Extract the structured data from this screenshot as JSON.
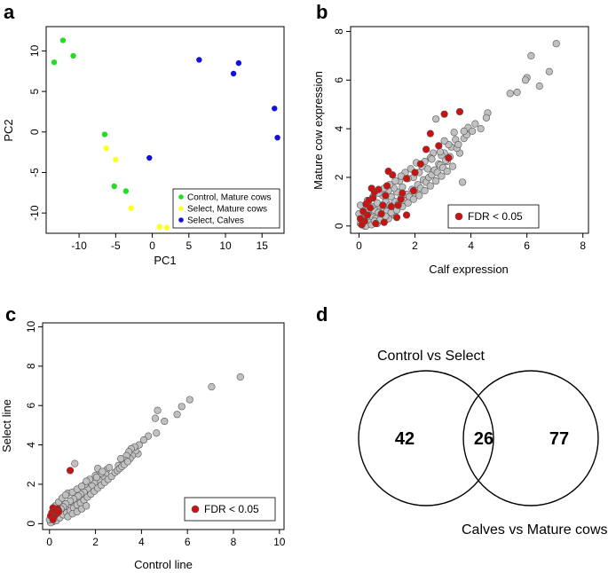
{
  "chart_data": [
    {
      "panel": "a",
      "type": "scatter",
      "xlabel": "PC1",
      "ylabel": "PC2",
      "xlim": [
        -14.5,
        18
      ],
      "ylim": [
        -12.5,
        13
      ],
      "xticks": [
        -10,
        -5,
        0,
        5,
        10,
        15
      ],
      "yticks": [
        -10,
        -5,
        0,
        5,
        10
      ],
      "legend_position": "bottom-right",
      "series": [
        {
          "name": "Control, Mature cows",
          "color": "#22dd22",
          "x": [
            -12.2,
            -10.8,
            -13.4,
            -6.5,
            -5.2,
            -3.6
          ],
          "y": [
            11.3,
            9.4,
            8.6,
            -0.3,
            -6.7,
            -7.3
          ]
        },
        {
          "name": "Select, Mature cows",
          "color": "#ffff22",
          "x": [
            -6.3,
            -5.0,
            -2.9,
            1.0,
            2.0
          ],
          "y": [
            -2.0,
            -3.4,
            -9.4,
            -11.7,
            -11.8
          ]
        },
        {
          "name": "Select, Calves",
          "color": "#1111dd",
          "x": [
            -0.4,
            6.4,
            11.1,
            11.8,
            16.7,
            17.1
          ],
          "y": [
            -3.2,
            8.9,
            7.2,
            8.5,
            2.9,
            -0.7
          ]
        }
      ]
    },
    {
      "panel": "b",
      "type": "scatter",
      "xlabel": "Calf expression",
      "ylabel": "Mature cow expression",
      "xlim": [
        -0.3,
        8.2
      ],
      "ylim": [
        -0.3,
        8.2
      ],
      "xticks": [
        0,
        2,
        4,
        6,
        8
      ],
      "yticks": [
        0,
        2,
        4,
        6,
        8
      ],
      "legend_position": "bottom-right",
      "legend_label": "FDR < 0.05",
      "grey_points": [
        [
          7.05,
          7.5
        ],
        [
          6.15,
          7.0
        ],
        [
          6.45,
          5.75
        ],
        [
          6.8,
          6.35
        ],
        [
          6.0,
          6.1
        ],
        [
          5.95,
          6.0
        ],
        [
          5.65,
          5.5
        ],
        [
          5.4,
          5.45
        ],
        [
          4.6,
          4.65
        ],
        [
          4.55,
          4.45
        ],
        [
          4.35,
          4.0
        ],
        [
          4.15,
          4.2
        ],
        [
          3.9,
          4.05
        ],
        [
          3.75,
          3.6
        ],
        [
          3.6,
          3.0
        ],
        [
          3.45,
          3.55
        ],
        [
          3.4,
          3.85
        ],
        [
          3.3,
          3.25
        ],
        [
          3.2,
          3.35
        ],
        [
          3.15,
          2.65
        ],
        [
          3.05,
          3.0
        ],
        [
          2.95,
          2.9
        ],
        [
          2.85,
          2.55
        ],
        [
          2.75,
          4.4
        ],
        [
          2.65,
          3.0
        ],
        [
          2.55,
          2.8
        ],
        [
          2.45,
          2.35
        ],
        [
          2.35,
          2.65
        ],
        [
          2.25,
          2.45
        ],
        [
          2.15,
          2.2
        ],
        [
          2.05,
          2.6
        ],
        [
          1.95,
          2.0
        ],
        [
          1.85,
          2.35
        ],
        [
          1.75,
          1.95
        ],
        [
          1.65,
          2.2
        ],
        [
          1.55,
          1.6
        ],
        [
          1.45,
          1.85
        ],
        [
          1.35,
          1.4
        ],
        [
          1.25,
          1.55
        ],
        [
          1.15,
          1.2
        ],
        [
          1.05,
          1.45
        ],
        [
          0.95,
          1.0
        ],
        [
          0.85,
          1.25
        ],
        [
          0.75,
          0.85
        ],
        [
          0.65,
          0.95
        ],
        [
          0.55,
          0.65
        ],
        [
          0.45,
          0.8
        ],
        [
          0.35,
          0.45
        ],
        [
          0.25,
          0.55
        ],
        [
          0.15,
          0.2
        ],
        [
          0.08,
          0.35
        ],
        [
          0.05,
          0.1
        ],
        [
          0.1,
          0.05
        ],
        [
          0.2,
          0.0
        ],
        [
          0.3,
          0.25
        ],
        [
          0.4,
          0.15
        ],
        [
          0.5,
          0.35
        ],
        [
          0.6,
          0.3
        ],
        [
          0.7,
          0.55
        ],
        [
          0.8,
          0.45
        ],
        [
          0.9,
          0.7
        ],
        [
          1.0,
          0.6
        ],
        [
          1.1,
          0.85
        ],
        [
          1.2,
          0.75
        ],
        [
          1.3,
          1.0
        ],
        [
          1.4,
          0.9
        ],
        [
          1.5,
          1.15
        ],
        [
          1.6,
          1.05
        ],
        [
          1.7,
          1.3
        ],
        [
          1.8,
          1.2
        ],
        [
          1.9,
          1.5
        ],
        [
          2.0,
          1.35
        ],
        [
          2.1,
          1.7
        ],
        [
          2.2,
          1.55
        ],
        [
          2.3,
          1.9
        ],
        [
          2.4,
          1.8
        ],
        [
          2.5,
          2.0
        ],
        [
          2.6,
          2.1
        ],
        [
          2.7,
          2.3
        ],
        [
          2.8,
          2.2
        ],
        [
          2.9,
          2.5
        ],
        [
          3.0,
          2.4
        ],
        [
          3.1,
          2.7
        ],
        [
          3.25,
          2.85
        ],
        [
          3.5,
          3.2
        ],
        [
          3.7,
          1.8
        ],
        [
          3.85,
          3.75
        ],
        [
          4.05,
          3.9
        ],
        [
          0.25,
          0.0
        ],
        [
          0.45,
          0.05
        ],
        [
          0.65,
          0.1
        ],
        [
          0.85,
          0.2
        ],
        [
          1.05,
          0.3
        ],
        [
          1.25,
          0.45
        ],
        [
          0.15,
          0.75
        ],
        [
          0.3,
          1.05
        ],
        [
          0.5,
          1.2
        ],
        [
          0.7,
          1.35
        ],
        [
          0.9,
          1.55
        ],
        [
          1.1,
          1.7
        ],
        [
          1.3,
          1.85
        ],
        [
          1.5,
          2.05
        ],
        [
          0.0,
          0.5
        ],
        [
          0.05,
          0.85
        ],
        [
          0.1,
          0.3
        ],
        [
          0.35,
          0.7
        ],
        [
          0.55,
          0.2
        ],
        [
          0.75,
          0.25
        ],
        [
          0.95,
          0.4
        ],
        [
          1.15,
          0.55
        ],
        [
          1.35,
          0.65
        ],
        [
          1.55,
          0.8
        ],
        [
          1.75,
          0.95
        ],
        [
          1.95,
          1.1
        ],
        [
          2.15,
          1.25
        ],
        [
          2.35,
          1.45
        ],
        [
          2.55,
          1.65
        ],
        [
          2.75,
          1.85
        ],
        [
          2.95,
          2.05
        ],
        [
          3.15,
          2.25
        ],
        [
          3.35,
          2.45
        ],
        [
          2.6,
          2.75
        ],
        [
          2.9,
          3.05
        ],
        [
          3.05,
          3.5
        ],
        [
          3.55,
          3.35
        ],
        [
          3.75,
          3.9
        ]
      ],
      "red_points": [
        [
          3.6,
          4.7
        ],
        [
          3.05,
          4.6
        ],
        [
          2.55,
          3.8
        ],
        [
          2.85,
          3.3
        ],
        [
          2.4,
          3.15
        ],
        [
          3.2,
          2.8
        ],
        [
          2.2,
          2.55
        ],
        [
          2.0,
          2.2
        ],
        [
          1.95,
          1.45
        ],
        [
          1.7,
          1.95
        ],
        [
          1.55,
          1.35
        ],
        [
          1.5,
          1.1
        ],
        [
          1.4,
          0.85
        ],
        [
          1.35,
          0.35
        ],
        [
          1.2,
          2.1
        ],
        [
          1.05,
          2.25
        ],
        [
          1.0,
          1.65
        ],
        [
          0.95,
          1.25
        ],
        [
          0.85,
          0.85
        ],
        [
          0.8,
          0.5
        ],
        [
          0.7,
          1.5
        ],
        [
          0.55,
          1.4
        ],
        [
          0.5,
          1.15
        ],
        [
          0.4,
          0.75
        ],
        [
          0.3,
          0.45
        ],
        [
          0.25,
          0.9
        ],
        [
          0.2,
          0.2
        ],
        [
          0.1,
          0.05
        ],
        [
          0.05,
          0.3
        ],
        [
          0.6,
          0.1
        ],
        [
          0.45,
          1.55
        ],
        [
          0.35,
          1.05
        ],
        [
          1.15,
          0.8
        ],
        [
          1.7,
          0.45
        ],
        [
          0.9,
          0.15
        ],
        [
          0.15,
          0.6
        ]
      ]
    },
    {
      "panel": "c",
      "type": "scatter",
      "xlabel": "Control line",
      "ylabel": "Select line",
      "xlim": [
        -0.3,
        10.2
      ],
      "ylim": [
        -0.3,
        10.2
      ],
      "xticks": [
        0,
        2,
        4,
        6,
        8,
        10
      ],
      "yticks": [
        0,
        2,
        4,
        6,
        8,
        10
      ],
      "legend_position": "bottom-right",
      "legend_label": "FDR < 0.05",
      "grey_points": [
        [
          8.3,
          7.45
        ],
        [
          7.05,
          6.95
        ],
        [
          6.1,
          6.3
        ],
        [
          5.75,
          5.95
        ],
        [
          5.55,
          5.55
        ],
        [
          5.0,
          5.2
        ],
        [
          4.7,
          5.75
        ],
        [
          4.65,
          4.6
        ],
        [
          4.6,
          5.35
        ],
        [
          4.3,
          4.45
        ],
        [
          4.1,
          4.25
        ],
        [
          3.9,
          4.0
        ],
        [
          3.85,
          3.55
        ],
        [
          3.75,
          3.7
        ],
        [
          3.7,
          3.9
        ],
        [
          3.6,
          3.45
        ],
        [
          3.55,
          3.8
        ],
        [
          3.5,
          3.3
        ],
        [
          3.45,
          3.65
        ],
        [
          3.35,
          3.45
        ],
        [
          3.3,
          3.2
        ],
        [
          3.2,
          3.05
        ],
        [
          3.1,
          3.3
        ],
        [
          3.0,
          2.95
        ],
        [
          2.5,
          2.75
        ],
        [
          2.45,
          2.5
        ],
        [
          2.35,
          2.3
        ],
        [
          2.25,
          2.55
        ],
        [
          2.15,
          2.2
        ],
        [
          2.1,
          2.8
        ],
        [
          2.0,
          2.45
        ],
        [
          1.95,
          2.05
        ],
        [
          1.85,
          1.9
        ],
        [
          1.75,
          2.25
        ],
        [
          1.65,
          1.75
        ],
        [
          1.55,
          2.0
        ],
        [
          1.5,
          1.6
        ],
        [
          1.45,
          1.3
        ],
        [
          1.35,
          1.5
        ],
        [
          1.3,
          1.15
        ],
        [
          1.25,
          1.4
        ],
        [
          1.15,
          1.05
        ],
        [
          1.1,
          3.05
        ],
        [
          1.05,
          1.25
        ],
        [
          0.95,
          0.9
        ],
        [
          0.9,
          1.15
        ],
        [
          0.85,
          0.8
        ],
        [
          0.8,
          1.55
        ],
        [
          0.75,
          0.7
        ],
        [
          0.7,
          1.0
        ],
        [
          0.65,
          0.6
        ],
        [
          0.6,
          0.85
        ],
        [
          0.55,
          0.5
        ],
        [
          0.5,
          0.75
        ],
        [
          0.45,
          0.4
        ],
        [
          0.4,
          0.65
        ],
        [
          0.35,
          0.3
        ],
        [
          0.3,
          0.55
        ],
        [
          0.25,
          0.2
        ],
        [
          0.2,
          0.45
        ],
        [
          0.15,
          0.1
        ],
        [
          0.1,
          0.3
        ],
        [
          0.05,
          0.05
        ],
        [
          0.0,
          0.2
        ],
        [
          0.15,
          0.35
        ],
        [
          0.3,
          0.15
        ],
        [
          0.45,
          0.3
        ],
        [
          0.6,
          0.45
        ],
        [
          0.75,
          0.55
        ],
        [
          0.9,
          0.65
        ],
        [
          1.05,
          0.8
        ],
        [
          1.2,
          0.95
        ],
        [
          1.35,
          1.05
        ],
        [
          1.5,
          1.2
        ],
        [
          1.65,
          1.35
        ],
        [
          1.8,
          1.5
        ],
        [
          1.95,
          1.65
        ],
        [
          2.1,
          1.8
        ],
        [
          2.25,
          1.95
        ],
        [
          2.4,
          2.1
        ],
        [
          2.55,
          2.25
        ],
        [
          2.7,
          2.4
        ],
        [
          2.85,
          2.6
        ],
        [
          2.95,
          2.7
        ],
        [
          3.05,
          2.8
        ],
        [
          3.15,
          2.9
        ],
        [
          3.25,
          3.0
        ],
        [
          3.4,
          3.15
        ],
        [
          1.0,
          1.6
        ],
        [
          1.2,
          1.75
        ],
        [
          1.4,
          1.9
        ],
        [
          1.6,
          2.15
        ],
        [
          0.8,
          0.35
        ],
        [
          1.0,
          0.5
        ],
        [
          1.2,
          0.6
        ],
        [
          1.4,
          0.75
        ],
        [
          1.6,
          0.9
        ],
        [
          0.25,
          0.9
        ],
        [
          0.4,
          1.1
        ],
        [
          0.55,
          1.3
        ],
        [
          0.7,
          1.45
        ],
        [
          2.05,
          2.35
        ],
        [
          2.3,
          2.65
        ],
        [
          2.6,
          2.85
        ]
      ],
      "red_points": [
        [
          0.9,
          2.7
        ],
        [
          0.35,
          0.75
        ],
        [
          0.15,
          0.8
        ],
        [
          0.3,
          0.5
        ],
        [
          0.2,
          0.35
        ],
        [
          0.1,
          0.55
        ],
        [
          0.25,
          0.65
        ],
        [
          0.05,
          0.4
        ],
        [
          0.4,
          0.6
        ],
        [
          0.15,
          0.2
        ]
      ]
    },
    {
      "panel": "d",
      "type": "venn",
      "sets": [
        "Control vs Select",
        "Calves vs Mature cows"
      ],
      "only_a": "42",
      "overlap": "26",
      "only_b": "77"
    }
  ],
  "colors": {
    "grey_point": "#c0c0c0",
    "red_point": "#cc1111",
    "grey_stroke": "#555555"
  }
}
